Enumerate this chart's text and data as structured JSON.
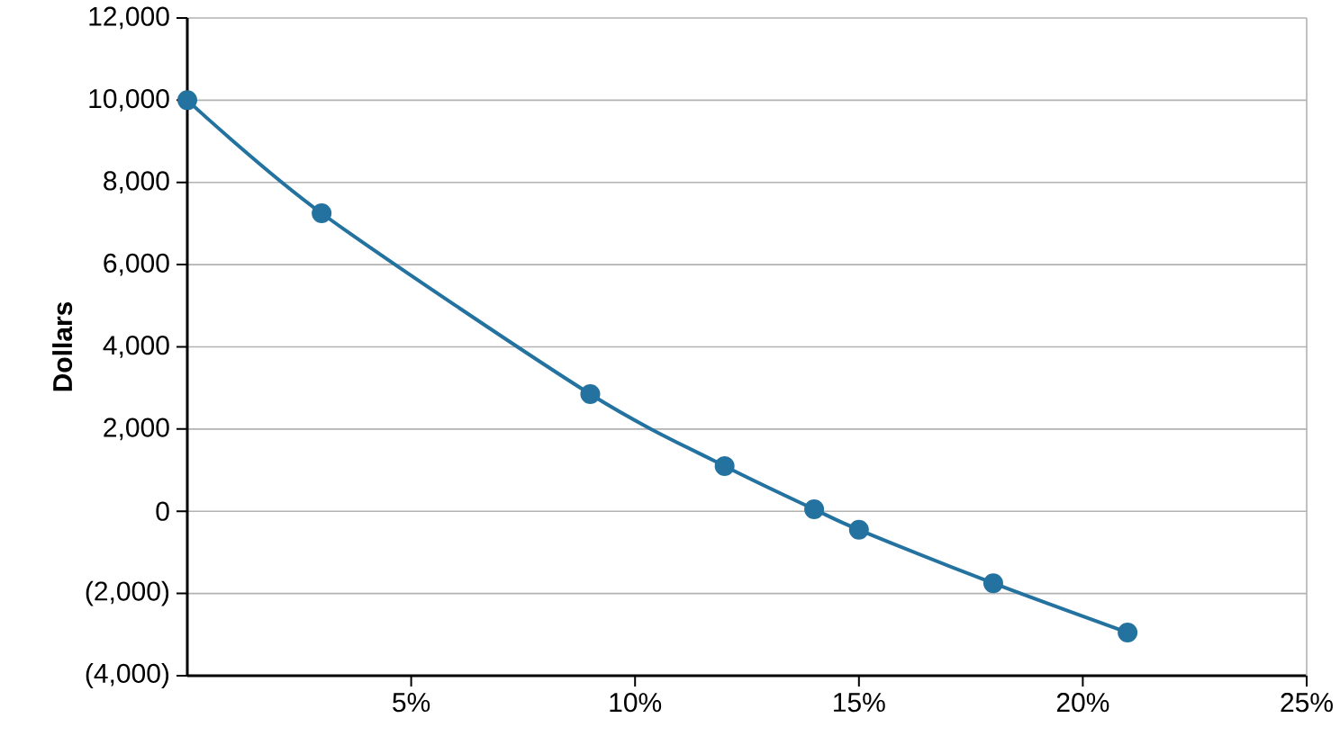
{
  "chart_data": {
    "type": "line",
    "ylabel": "Dollars",
    "x": [
      0,
      3,
      9,
      12,
      14,
      15,
      18,
      21
    ],
    "values": [
      10000,
      7250,
      2850,
      1100,
      50,
      -450,
      -1750,
      -2950
    ],
    "color": "#23729f",
    "xlim": [
      0,
      25
    ],
    "xticks": [
      {
        "value": 5,
        "label": "5%"
      },
      {
        "value": 10,
        "label": "10%"
      },
      {
        "value": 15,
        "label": "15%"
      },
      {
        "value": 20,
        "label": "20%"
      },
      {
        "value": 25,
        "label": "25%"
      }
    ],
    "ylim": [
      -4000,
      12000
    ],
    "yticks": [
      {
        "value": -4000,
        "label": "(4,000)"
      },
      {
        "value": -2000,
        "label": "(2,000)"
      },
      {
        "value": 0,
        "label": "0"
      },
      {
        "value": 2000,
        "label": "2,000"
      },
      {
        "value": 4000,
        "label": "4,000"
      },
      {
        "value": 6000,
        "label": "6,000"
      },
      {
        "value": 8000,
        "label": "8,000"
      },
      {
        "value": 10000,
        "label": "10,000"
      },
      {
        "value": 12000,
        "label": "12,000"
      }
    ],
    "grid": "y",
    "marker": "circle",
    "line_style": "solid"
  }
}
